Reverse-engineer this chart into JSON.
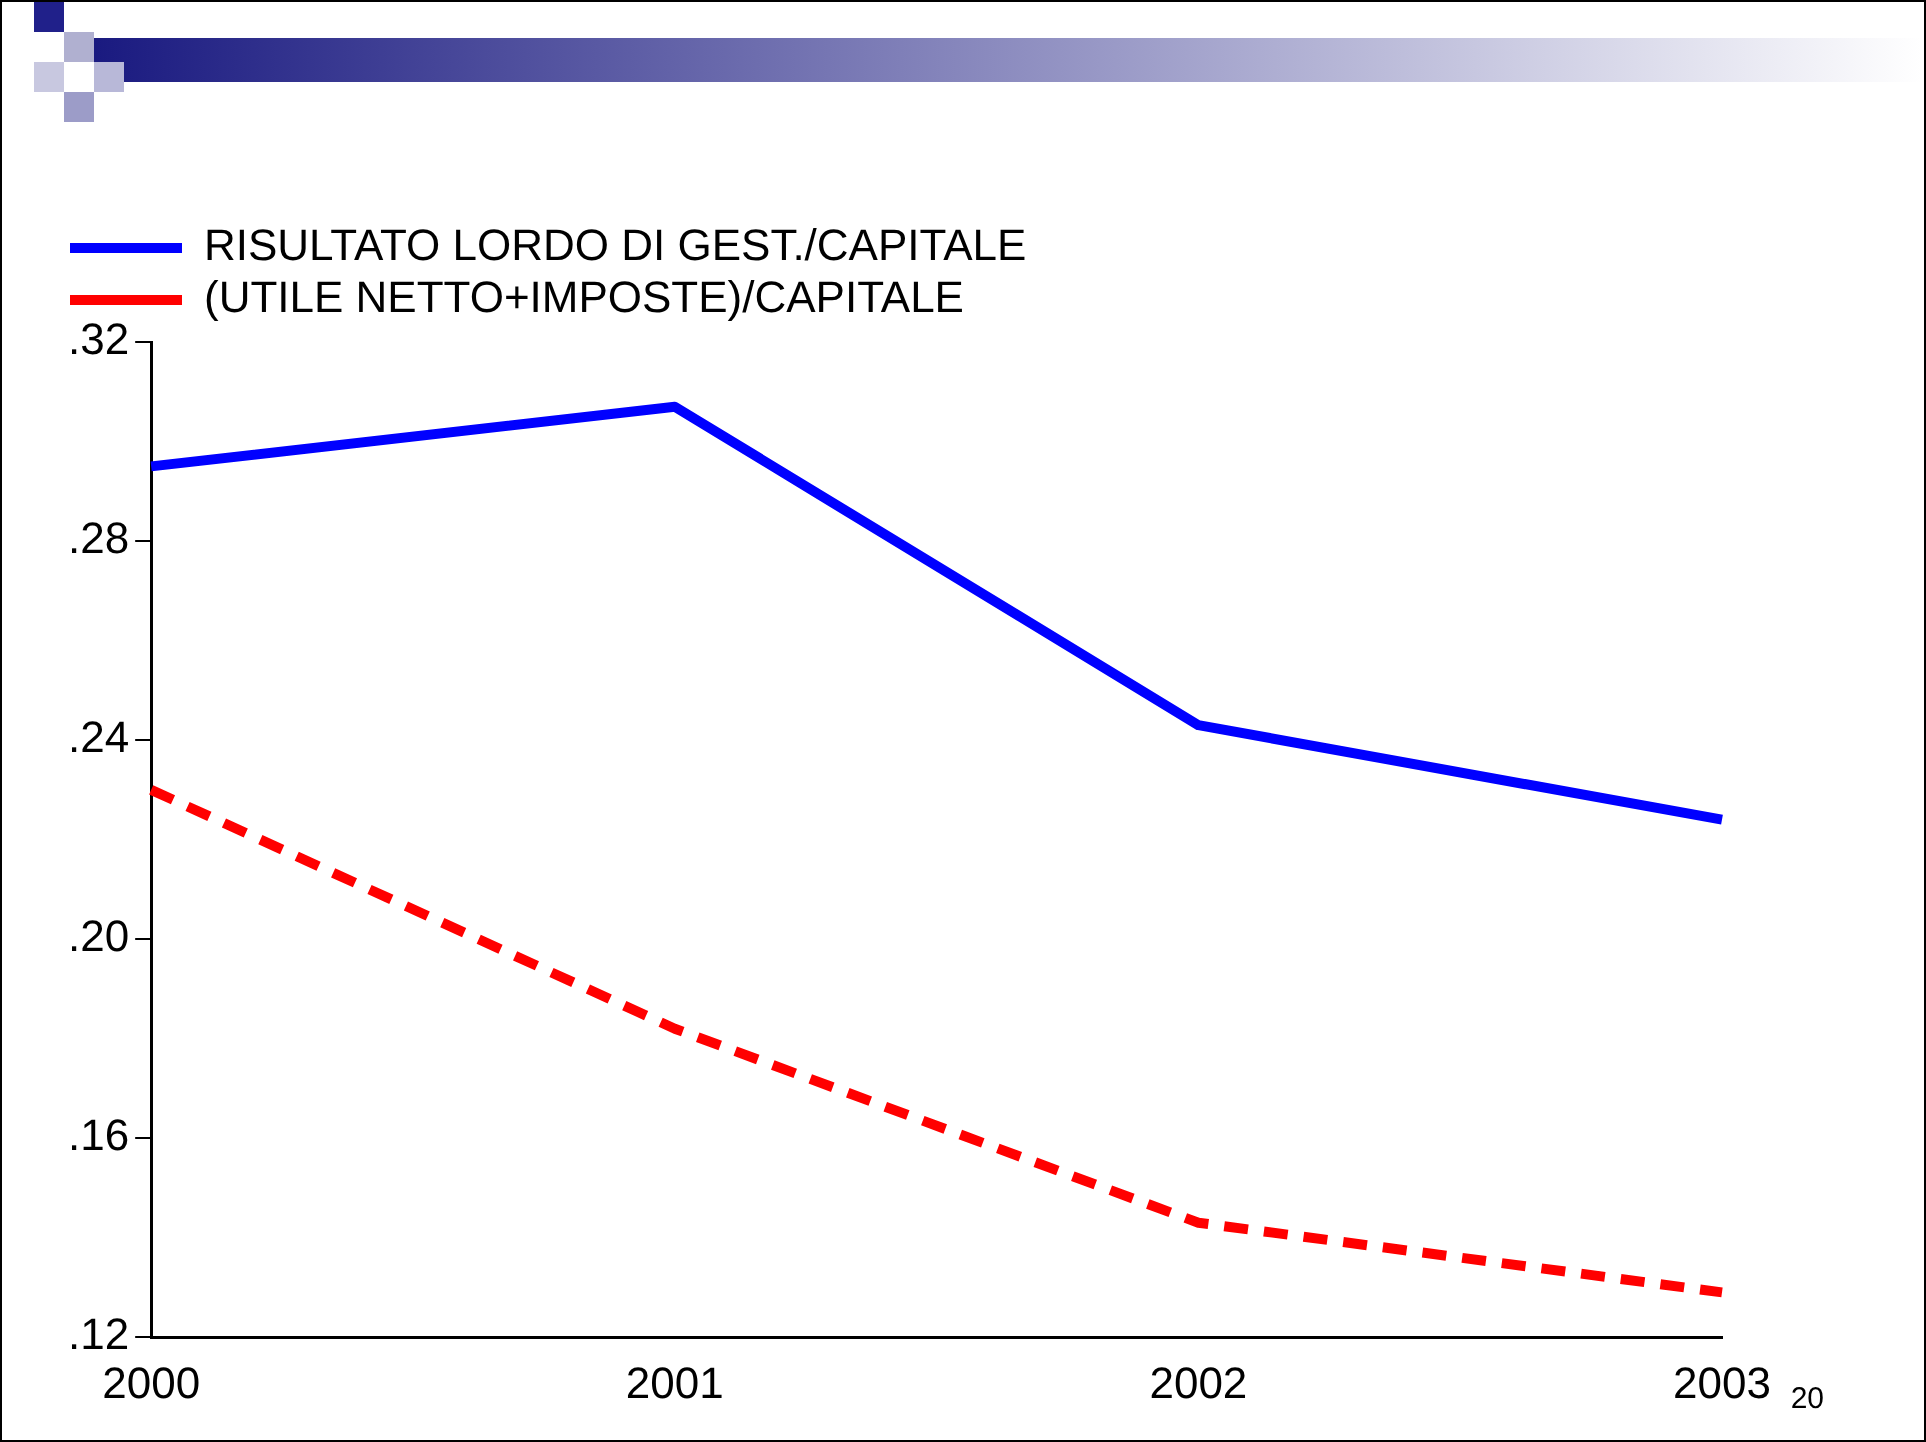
{
  "chart_data": {
    "type": "line",
    "categories": [
      "2000",
      "2001",
      "2002",
      "2003"
    ],
    "series": [
      {
        "name": "RISULTATO LORDO DI GEST./CAPITALE",
        "color": "#0000ff",
        "values": [
          0.295,
          0.307,
          0.243,
          0.224
        ],
        "line_style": "solid"
      },
      {
        "name": "(UTILE NETTO+IMPOSTE)/CAPITALE",
        "color": "#ff0000",
        "values": [
          0.23,
          0.182,
          0.143,
          0.129
        ],
        "line_style": "dashed"
      }
    ],
    "ylim": [
      0.12,
      0.32
    ],
    "yticks": [
      {
        "value": 0.12,
        "label": ".12"
      },
      {
        "value": 0.16,
        "label": ".16"
      },
      {
        "value": 0.2,
        "label": ".20"
      },
      {
        "value": 0.24,
        "label": ".24"
      },
      {
        "value": 0.28,
        "label": ".28"
      },
      {
        "value": 0.32,
        "label": ".32"
      }
    ],
    "grid": false,
    "legend": "top left",
    "marker": "none",
    "annotations": [
      "20"
    ]
  }
}
